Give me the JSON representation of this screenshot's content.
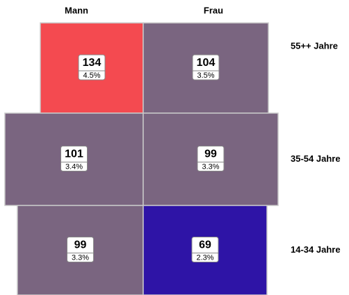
{
  "chart_data": {
    "type": "mosaic",
    "categories": [
      "55++  Jahre",
      "35-54 Jahre",
      "14-34 Jahre"
    ],
    "series": [
      {
        "name": "Mann",
        "values": [
          134,
          101,
          99
        ],
        "share_labels": [
          "4.5%",
          "3.4%",
          "3.3%"
        ],
        "colors": [
          "#f44a50",
          "#7a6580",
          "#7a6580"
        ]
      },
      {
        "name": "Frau",
        "values": [
          104,
          99,
          69
        ],
        "share_labels": [
          "3.5%",
          "3.3%",
          "2.3%"
        ],
        "colors": [
          "#7a6580",
          "#7a6580",
          "#2e14a6"
        ]
      }
    ]
  }
}
